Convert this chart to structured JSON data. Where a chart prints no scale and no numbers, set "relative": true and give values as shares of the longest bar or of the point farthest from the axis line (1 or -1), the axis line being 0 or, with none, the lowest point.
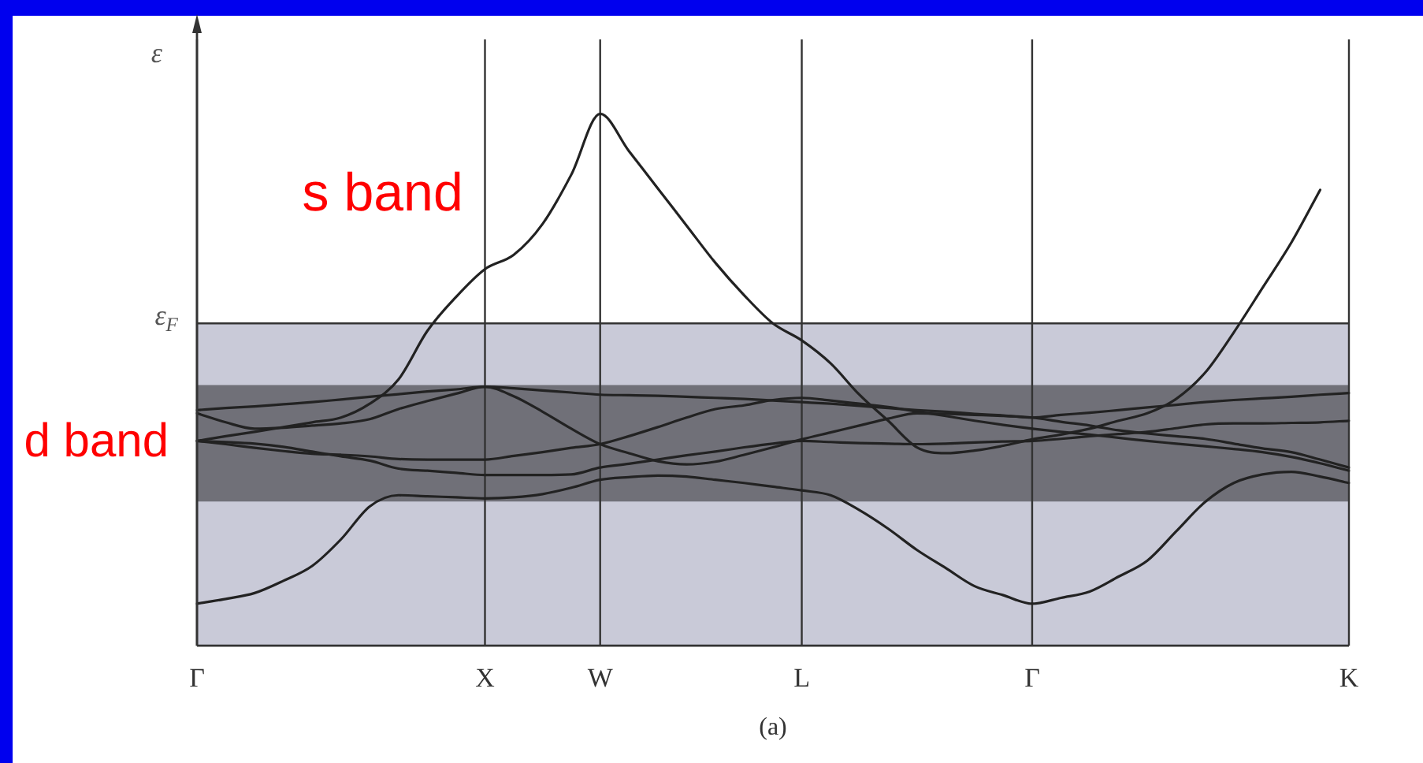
{
  "chart_data": {
    "type": "line",
    "relative": true,
    "ylabel": "ε",
    "categories": [
      "Γ",
      null,
      null,
      null,
      null,
      null,
      null,
      null,
      null,
      null,
      "X",
      null,
      null,
      null,
      "W",
      null,
      null,
      null,
      null,
      null,
      null,
      "L",
      null,
      null,
      null,
      null,
      null,
      null,
      null,
      "Γ",
      null,
      null,
      null,
      null,
      null,
      null,
      null,
      null,
      null,
      null,
      "K"
    ],
    "grid": "x",
    "marker": "none",
    "line_style": "solid",
    "series": [
      {
        "color": "#222222",
        "values": [
          0.079,
          0.088,
          0.099,
          0.122,
          0.15,
          0.2,
          0.262,
          0.283,
          0.281,
          0.279,
          0.277,
          0.279,
          0.285,
          0.297,
          0.312,
          0.317,
          0.32,
          0.318,
          0.312,
          0.306,
          0.299,
          0.292,
          0.283,
          0.255,
          0.22,
          0.18,
          0.146,
          0.112,
          0.095,
          0.079,
          0.09,
          0.102,
          0.13,
          0.16,
          0.215,
          0.27,
          0.306,
          0.322,
          0.327,
          0.318,
          0.306
        ]
      },
      {
        "name": "s band",
        "color": "#222222",
        "values": [
          0.385,
          0.394,
          0.402,
          0.411,
          0.42,
          0.429,
          0.455,
          0.501,
          0.592,
          0.656,
          0.708,
          0.735,
          0.793,
          0.886,
          1,
          0.93,
          0.86,
          0.79,
          0.72,
          0.659,
          0.606,
          0.574,
          0.531,
          0.472,
          0.423,
          0.373,
          0.362,
          0.367,
          0.376,
          0.388,
          0.397,
          0.408,
          0.423,
          0.437,
          0.464,
          0.513,
          0.589,
          0.673,
          0.758,
          0.857,
          null
        ]
      },
      {
        "color": "#222222",
        "values": [
          0.443,
          0.447,
          0.45,
          0.454,
          0.458,
          0.463,
          0.468,
          0.473,
          0.478,
          0.482,
          0.487,
          0.484,
          0.48,
          0.476,
          0.472,
          0.471,
          0.47,
          0.468,
          0.466,
          0.464,
          0.461,
          0.458,
          0.455,
          0.451,
          0.447,
          0.443,
          0.44,
          0.436,
          0.433,
          0.429,
          0.434,
          0.438,
          0.443,
          0.448,
          0.453,
          0.458,
          0.462,
          0.465,
          0.468,
          0.472,
          0.475
        ]
      },
      {
        "color": "#222222",
        "values": [
          0.437,
          0.42,
          0.408,
          0.41,
          0.414,
          0.418,
          0.426,
          0.445,
          0.46,
          0.474,
          0.487,
          0.469,
          0.44,
          0.408,
          0.379,
          0.362,
          0.347,
          0.341,
          0.346,
          0.359,
          0.373,
          0.388,
          0.401,
          0.414,
          0.427,
          0.437,
          0.436,
          0.434,
          0.432,
          0.429,
          0.421,
          0.414,
          0.405,
          0.399,
          0.394,
          0.389,
          0.38,
          0.371,
          0.364,
          0.35,
          0.335
        ]
      },
      {
        "color": "#222222",
        "values": [
          0.385,
          0.383,
          0.38,
          0.374,
          0.365,
          0.356,
          0.348,
          0.333,
          0.329,
          0.325,
          0.321,
          0.321,
          0.321,
          0.322,
          0.335,
          0.342,
          0.35,
          0.358,
          0.365,
          0.373,
          0.38,
          0.385,
          0.383,
          0.381,
          0.38,
          0.379,
          0.38,
          0.382,
          0.384,
          0.385,
          0.389,
          0.394,
          0.398,
          0.402,
          0.409,
          0.416,
          0.418,
          0.418,
          0.419,
          0.42,
          0.423
        ]
      },
      {
        "color": "#222222",
        "values": [
          0.385,
          0.379,
          0.372,
          0.366,
          0.361,
          0.359,
          0.356,
          0.351,
          0.35,
          0.35,
          0.35,
          0.357,
          0.364,
          0.372,
          0.379,
          0.394,
          0.411,
          0.429,
          0.445,
          0.452,
          0.462,
          0.466,
          0.461,
          0.455,
          0.449,
          0.44,
          0.432,
          0.423,
          0.415,
          0.408,
          0.402,
          0.397,
          0.391,
          0.385,
          0.38,
          0.375,
          0.37,
          0.364,
          0.355,
          0.343,
          0.329
        ]
      }
    ],
    "bands": [
      {
        "axis": "y",
        "from": 0,
        "to": 0.606,
        "color": "#c9cad8"
      },
      {
        "axis": "y",
        "from": 0.271,
        "to": 0.49,
        "color": "#707078",
        "label": "d band"
      }
    ],
    "ref_lines": [
      {
        "axis": "y",
        "value": 0.606,
        "label": "ε$_{F}$",
        "color": "#333333"
      }
    ],
    "annotations": [
      "(a)"
    ]
  }
}
